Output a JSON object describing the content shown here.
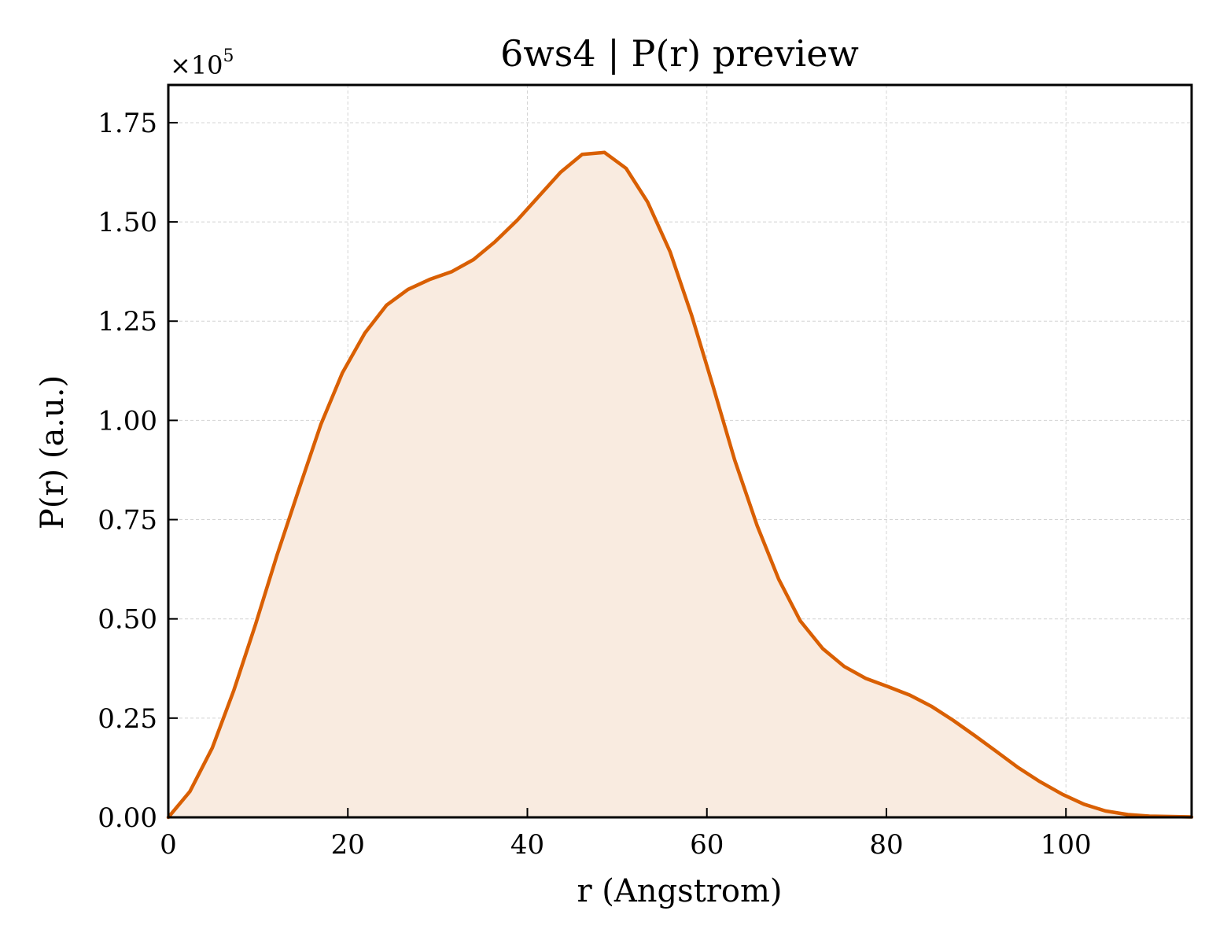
{
  "chart_data": {
    "type": "area",
    "title": "6ws4 | P(r) preview",
    "xlabel": "r (Angstrom)",
    "ylabel": "P(r) (a.u.)",
    "y_scale_label": "×10",
    "y_scale_exponent": "5",
    "xlim": [
      0,
      114
    ],
    "ylim": [
      0,
      1.845
    ],
    "x_ticks": [
      0,
      20,
      40,
      60,
      80,
      100
    ],
    "x_tick_labels": [
      "0",
      "20",
      "40",
      "60",
      "80",
      "100"
    ],
    "y_ticks": [
      0,
      0.25,
      0.5,
      0.75,
      1.0,
      1.25,
      1.5,
      1.75
    ],
    "y_tick_labels": [
      "0.00",
      "0.25",
      "0.50",
      "0.75",
      "1.00",
      "1.25",
      "1.50",
      "1.75"
    ],
    "grid": true,
    "line_color": "#d95f02",
    "fill_color": "#f9ebe0",
    "series": [
      {
        "x": [
          0,
          2.4,
          4.9,
          7.3,
          9.7,
          12.1,
          14.6,
          17.0,
          19.4,
          21.9,
          24.3,
          26.7,
          29.1,
          31.6,
          34.0,
          36.4,
          38.9,
          41.3,
          43.7,
          46.1,
          48.6,
          51.0,
          53.4,
          55.9,
          58.3,
          60.7,
          63.1,
          65.6,
          68.0,
          70.4,
          72.9,
          75.3,
          77.7,
          80.1,
          82.6,
          85.0,
          87.4,
          89.9,
          92.3,
          94.7,
          97.1,
          99.6,
          102.0,
          104.4,
          106.9,
          109.3,
          111.7,
          114.0
        ],
        "y": [
          0.0,
          0.065,
          0.175,
          0.32,
          0.485,
          0.66,
          0.83,
          0.99,
          1.12,
          1.22,
          1.29,
          1.33,
          1.355,
          1.375,
          1.405,
          1.45,
          1.505,
          1.565,
          1.625,
          1.67,
          1.675,
          1.635,
          1.55,
          1.425,
          1.265,
          1.085,
          0.9,
          0.735,
          0.6,
          0.495,
          0.425,
          0.38,
          0.35,
          0.33,
          0.308,
          0.28,
          0.245,
          0.205,
          0.165,
          0.125,
          0.09,
          0.058,
          0.033,
          0.016,
          0.007,
          0.003,
          0.002,
          0.001
        ]
      }
    ]
  }
}
